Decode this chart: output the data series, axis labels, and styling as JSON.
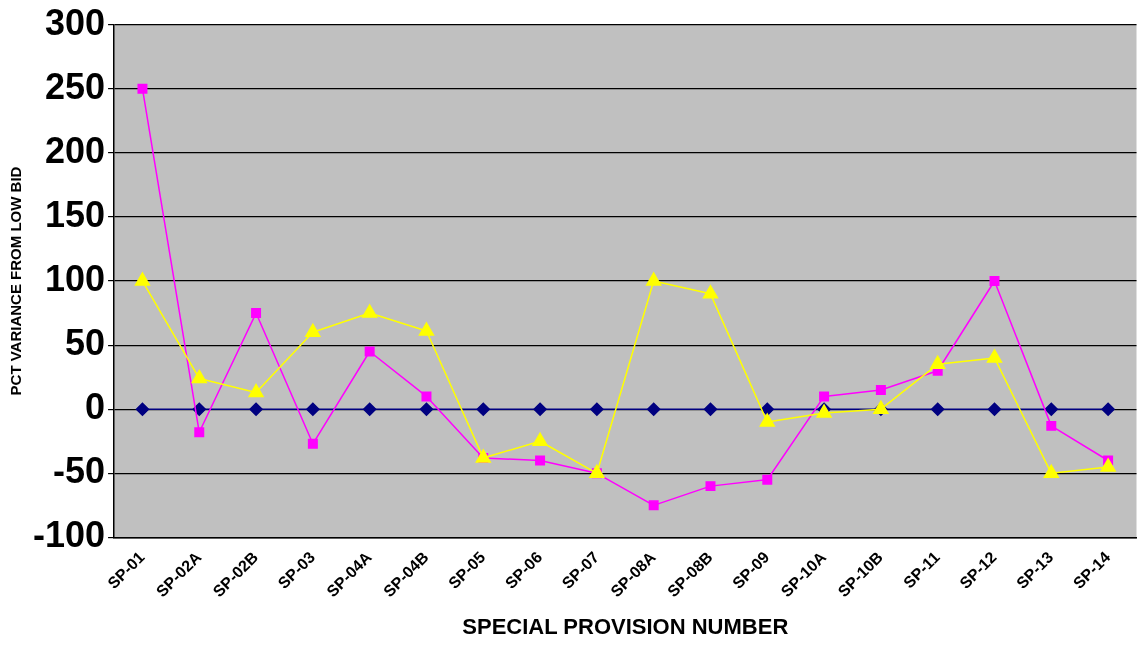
{
  "chart_data": {
    "type": "line",
    "xlabel": "SPECIAL PROVISION NUMBER",
    "ylabel": "PCT VARIANCE FROM LOW BID",
    "categories": [
      "SP-01",
      "SP-02A",
      "SP-02B",
      "SP-03",
      "SP-04A",
      "SP-04B",
      "SP-05",
      "SP-06",
      "SP-07",
      "SP-08A",
      "SP-08B",
      "SP-09",
      "SP-10A",
      "SP-10B",
      "SP-11",
      "SP-12",
      "SP-13",
      "SP-14"
    ],
    "series": [
      {
        "color": "#000080",
        "marker": "diamond",
        "values": [
          0,
          0,
          0,
          0,
          0,
          0,
          0,
          0,
          0,
          0,
          0,
          0,
          0,
          0,
          0,
          0,
          0,
          0
        ]
      },
      {
        "color": "#ff00ff",
        "marker": "square",
        "values": [
          250,
          -18,
          75,
          -27,
          45,
          10,
          -38,
          -40,
          -50,
          -75,
          -60,
          -55,
          10,
          15,
          30,
          100,
          -13,
          -40
        ]
      },
      {
        "color": "#ffff00",
        "marker": "triangle",
        "values": [
          100,
          24,
          13,
          60,
          75,
          61,
          -38,
          -25,
          -50,
          100,
          90,
          -10,
          -3,
          0,
          35,
          40,
          -50,
          -45
        ]
      }
    ],
    "ylim": [
      -100,
      300
    ],
    "yticks": [
      -100,
      -50,
      0,
      50,
      100,
      150,
      200,
      250,
      300
    ],
    "grid": "y",
    "legend": false
  }
}
